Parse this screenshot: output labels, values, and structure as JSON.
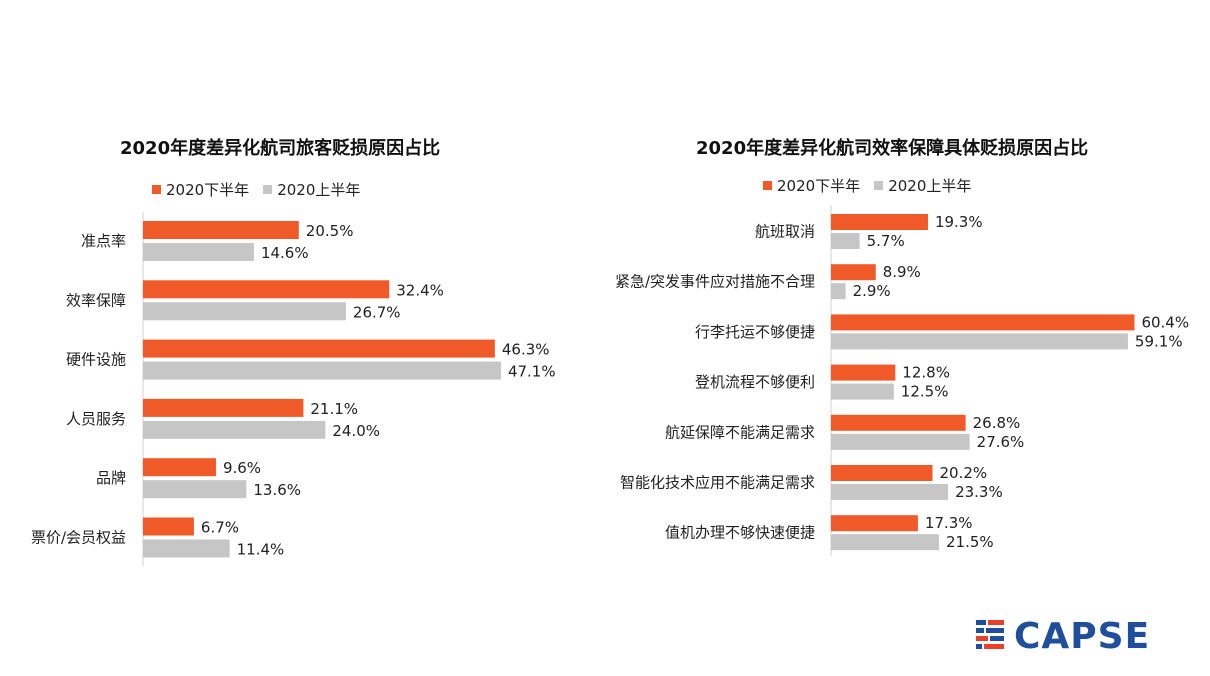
{
  "colors": {
    "series_a": "#f05a28",
    "series_b": "#c6c6c6",
    "logo_blue": "#1f4f9c",
    "logo_red": "#e8402c"
  },
  "logo": {
    "text": "CAPSE",
    "icon": "capse-flag-logo"
  },
  "chart_data": [
    {
      "type": "bar",
      "orientation": "horizontal",
      "title": "2020年度差异化航司旅客贬损原因占比",
      "categories": [
        "准点率",
        "效率保障",
        "硬件设施",
        "人员服务",
        "品牌",
        "票价/会员权益"
      ],
      "series": [
        {
          "name": "2020下半年",
          "color": "#f05a28",
          "values": [
            20.5,
            32.4,
            46.3,
            21.1,
            9.6,
            6.7
          ],
          "labels": [
            "20.5%",
            "32.4%",
            "46.3%",
            "21.1%",
            "9.6%",
            "6.7%"
          ]
        },
        {
          "name": "2020上半年",
          "color": "#c6c6c6",
          "values": [
            14.6,
            26.7,
            47.1,
            24.0,
            13.6,
            11.4
          ],
          "labels": [
            "14.6%",
            "26.7%",
            "47.1%",
            "24.0%",
            "13.6%",
            "11.4%"
          ]
        }
      ],
      "xlim": [
        0,
        50
      ],
      "grid": false,
      "legend": "top"
    },
    {
      "type": "bar",
      "orientation": "horizontal",
      "title": "2020年度差异化航司效率保障具体贬损原因占比",
      "categories": [
        "航班取消",
        "紧急/突发事件应对措施不合理",
        "行李托运不够便捷",
        "登机流程不够便利",
        "航延保障不能满足需求",
        "智能化技术应用不能满足需求",
        "值机办理不够快速便捷"
      ],
      "series": [
        {
          "name": "2020下半年",
          "color": "#f05a28",
          "values": [
            19.3,
            8.9,
            60.4,
            12.8,
            26.8,
            20.2,
            17.3
          ],
          "labels": [
            "19.3%",
            "8.9%",
            "60.4%",
            "12.8%",
            "26.8%",
            "20.2%",
            "17.3%"
          ]
        },
        {
          "name": "2020上半年",
          "color": "#c6c6c6",
          "values": [
            5.7,
            2.9,
            59.1,
            12.5,
            27.6,
            23.3,
            21.5
          ],
          "labels": [
            "5.7%",
            "2.9%",
            "59.1%",
            "12.5%",
            "27.6%",
            "23.3%",
            "21.5%"
          ]
        }
      ],
      "xlim": [
        0,
        62
      ],
      "grid": false,
      "legend": "top"
    }
  ]
}
